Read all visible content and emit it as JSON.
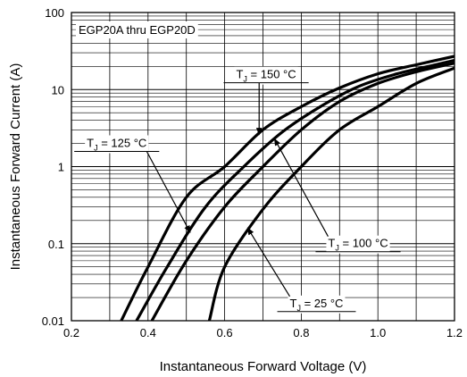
{
  "chart_data": {
    "type": "line",
    "title": "EGP20A thru EGP20D",
    "xlabel": "Instantaneous Forward Voltage (V)",
    "ylabel": "Instantaneous Forward Current (A)",
    "xlim": [
      0.2,
      1.2
    ],
    "ylim": [
      0.01,
      100
    ],
    "yscale": "log",
    "grid": true,
    "x_ticks": [
      "0.2",
      "0.4",
      "0.6",
      "0.8",
      "1.0",
      "1.2"
    ],
    "y_ticks": [
      "0.01",
      "0.1",
      "1",
      "10",
      "100"
    ],
    "series": [
      {
        "name": "TJ = 150 °C",
        "label_parts": {
          "main": "T",
          "sub": "J",
          "rest": " = 150 °C"
        },
        "points": [
          [
            0.33,
            0.01
          ],
          [
            0.4,
            0.05
          ],
          [
            0.5,
            0.4
          ],
          [
            0.6,
            1.0
          ],
          [
            0.7,
            3.0
          ],
          [
            0.8,
            6.0
          ],
          [
            0.9,
            10.5
          ],
          [
            1.0,
            16.0
          ],
          [
            1.1,
            21.0
          ],
          [
            1.2,
            27.0
          ]
        ]
      },
      {
        "name": "TJ = 125 °C",
        "label_parts": {
          "main": "T",
          "sub": "J",
          "rest": " = 125 °C"
        },
        "points": [
          [
            0.37,
            0.01
          ],
          [
            0.45,
            0.05
          ],
          [
            0.55,
            0.3
          ],
          [
            0.65,
            1.0
          ],
          [
            0.75,
            2.8
          ],
          [
            0.85,
            6.0
          ],
          [
            0.95,
            11.0
          ],
          [
            1.05,
            16.0
          ],
          [
            1.15,
            21.0
          ],
          [
            1.2,
            24.0
          ]
        ]
      },
      {
        "name": "TJ = 100 °C",
        "label_parts": {
          "main": "T",
          "sub": "J",
          "rest": " = 100 °C"
        },
        "points": [
          [
            0.41,
            0.01
          ],
          [
            0.5,
            0.06
          ],
          [
            0.6,
            0.3
          ],
          [
            0.7,
            1.0
          ],
          [
            0.8,
            3.0
          ],
          [
            0.9,
            7.0
          ],
          [
            1.0,
            12.0
          ],
          [
            1.1,
            17.0
          ],
          [
            1.2,
            22.0
          ]
        ]
      },
      {
        "name": "TJ = 25 °C",
        "label_parts": {
          "main": "T",
          "sub": "J",
          "rest": " = 25 °C"
        },
        "points": [
          [
            0.56,
            0.01
          ],
          [
            0.6,
            0.05
          ],
          [
            0.7,
            0.28
          ],
          [
            0.8,
            1.0
          ],
          [
            0.9,
            3.0
          ],
          [
            1.0,
            6.0
          ],
          [
            1.1,
            12.0
          ],
          [
            1.2,
            19.0
          ]
        ]
      }
    ],
    "annotations": [
      {
        "series": 0,
        "text_x": 0.63,
        "text_y": 14.0,
        "arrow_to": [
          0.69,
          2.6
        ]
      },
      {
        "series": 1,
        "text_x": 0.24,
        "text_y": 1.8,
        "arrow_to": [
          0.51,
          0.14
        ]
      },
      {
        "series": 2,
        "text_x": 0.87,
        "text_y": 0.09,
        "arrow_to": [
          0.73,
          2.3
        ]
      },
      {
        "series": 3,
        "text_x": 0.77,
        "text_y": 0.015,
        "arrow_to": [
          0.66,
          0.16
        ]
      }
    ]
  }
}
